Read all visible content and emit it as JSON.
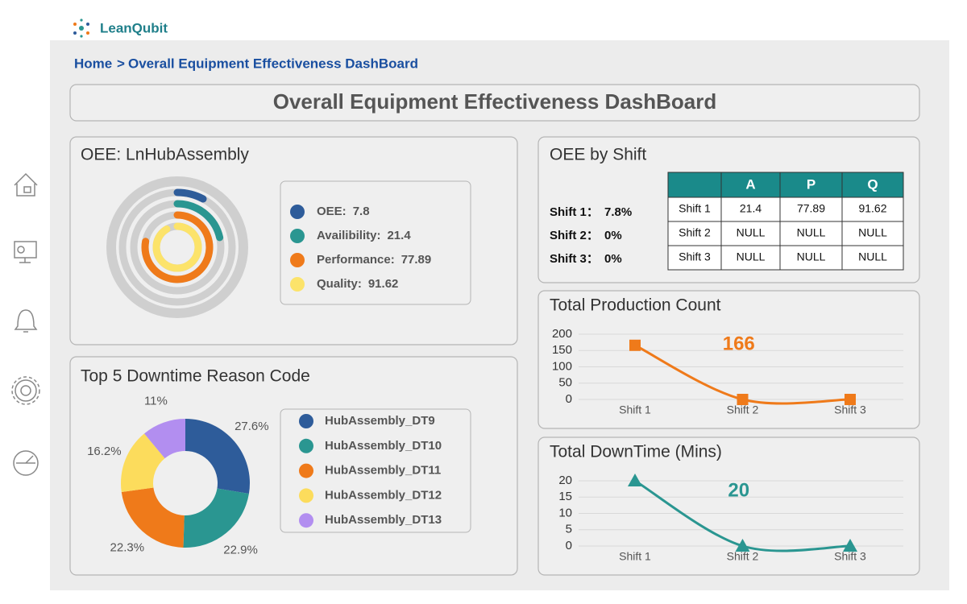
{
  "brand": "LeanQubit",
  "breadcrumb": {
    "home": "Home",
    "separator": ">",
    "current": "Overall Equipment Effectiveness DashBoard"
  },
  "title": "Overall Equipment Effectiveness DashBoard",
  "oee_by_shift": {
    "title": "OEE by Shift",
    "summary": [
      {
        "label": "Shift 1：",
        "value": "7.8%"
      },
      {
        "label": "Shift 2：",
        "value": "0%"
      },
      {
        "label": "Shift 3：",
        "value": "0%"
      }
    ],
    "table": {
      "columns": [
        "A",
        "P",
        "Q"
      ],
      "rows": [
        [
          "Shift 1",
          "21.4",
          "77.89",
          "91.62"
        ],
        [
          "Shift 2",
          "NULL",
          "NULL",
          "NULL"
        ],
        [
          "Shift 3",
          "NULL",
          "NULL",
          "NULL"
        ]
      ]
    }
  },
  "chart_data": [
    {
      "type": "radial",
      "title": "OEE: LnHubAssembly",
      "ylim": [
        0,
        100
      ],
      "series": [
        {
          "name": "OEE:",
          "color": "#2e5c9a",
          "values": [
            7.8
          ]
        },
        {
          "name": "Availibility:",
          "color": "#2a9691",
          "values": [
            21.4
          ]
        },
        {
          "name": "Performance:",
          "color": "#ef7a1a",
          "values": [
            77.89
          ]
        },
        {
          "name": "Quality:",
          "color": "#fce36a",
          "values": [
            91.62
          ]
        }
      ]
    },
    {
      "type": "donut",
      "title": "Top 5 Downtime Reason Code",
      "categories": [
        "HubAssembly_DT9",
        "HubAssembly_DT10",
        "HubAssembly_DT11",
        "HubAssembly_DT12",
        "HubAssembly_DT13"
      ],
      "values": [
        27.6,
        22.9,
        22.3,
        16.2,
        11
      ],
      "value_labels": [
        "27.6%",
        "22.9%",
        "22.3%",
        "16.2%",
        "11%"
      ],
      "colors": [
        "#2e5c9a",
        "#2a9691",
        "#ef7a1a",
        "#fcdc5c",
        "#b28ef0"
      ]
    },
    {
      "type": "line",
      "title": "Total Production Count",
      "categories": [
        "Shift 1",
        "Shift 2",
        "Shift 3"
      ],
      "values": [
        166,
        0,
        0
      ],
      "color": "#ef7a1a",
      "marker": "square",
      "ylim": [
        0,
        200
      ],
      "yticks": [
        0,
        50,
        100,
        150,
        200
      ],
      "grid": true
    },
    {
      "type": "line",
      "title": "Total DownTime (Mins)",
      "categories": [
        "Shift 1",
        "Shift 2",
        "Shift 3"
      ],
      "values": [
        20,
        0,
        0
      ],
      "color": "#2a9691",
      "marker": "triangle",
      "ylim": [
        0,
        20
      ],
      "yticks": [
        0,
        5,
        10,
        15,
        20
      ],
      "grid": true
    }
  ]
}
